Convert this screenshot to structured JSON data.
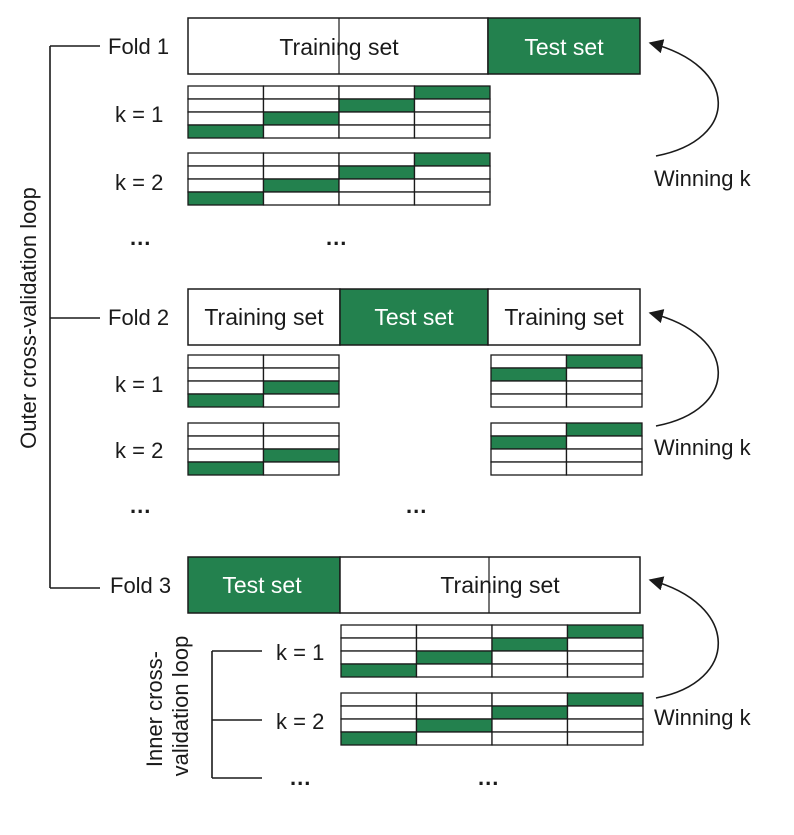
{
  "colors": {
    "test": "#23814e",
    "line": "#1a1a1a",
    "background": "#ffffff"
  },
  "outer_loop_label": "Outer cross-validation loop",
  "inner_loop_label": [
    "Inner cross-",
    "validation loop"
  ],
  "folds": [
    {
      "label": "Fold 1",
      "segments": [
        {
          "text": "Training set",
          "type": "train"
        },
        {
          "text": "Test set",
          "type": "test"
        }
      ],
      "k_labels": [
        "k = 1",
        "k = 2"
      ],
      "ellipsis": [
        "...",
        "..."
      ],
      "winning_label": "Winning k"
    },
    {
      "label": "Fold 2",
      "segments": [
        {
          "text": "Training set",
          "type": "train"
        },
        {
          "text": "Test set",
          "type": "test"
        },
        {
          "text": "Training set",
          "type": "train"
        }
      ],
      "k_labels": [
        "k = 1",
        "k = 2"
      ],
      "ellipsis": [
        "...",
        "..."
      ],
      "winning_label": "Winning k"
    },
    {
      "label": "Fold 3",
      "segments": [
        {
          "text": "Test set",
          "type": "test"
        },
        {
          "text": "Training set",
          "type": "train"
        }
      ],
      "k_labels": [
        "k = 1",
        "k = 2"
      ],
      "ellipsis": [
        "...",
        "..."
      ],
      "winning_label": "Winning k"
    }
  ]
}
